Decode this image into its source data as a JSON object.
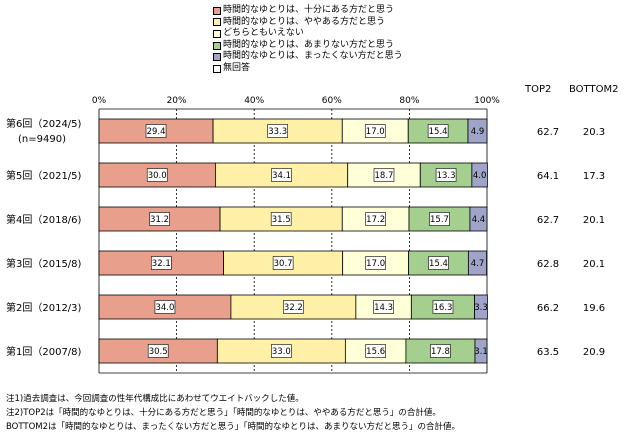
{
  "chart_data": {
    "type": "bar",
    "stacked": true,
    "orientation": "horizontal",
    "categories": [
      [
        "第6回（2024/5)",
        "(n=9490)"
      ],
      [
        "第5回（2021/5)"
      ],
      [
        "第4回（2018/6)"
      ],
      [
        "第3回（2015/8)"
      ],
      [
        "第2回（2012/3)"
      ],
      [
        "第1回（2007/8)"
      ]
    ],
    "series": [
      {
        "name": "時間的なゆとりは、十分にある方だと思う",
        "color": "#E8A08C",
        "values": [
          29.4,
          30.0,
          31.2,
          32.1,
          34.0,
          30.5
        ]
      },
      {
        "name": "時間的なゆとりは、ややある方だと思う",
        "color": "#FFF0A8",
        "values": [
          33.3,
          34.1,
          31.5,
          30.7,
          32.2,
          33.0
        ]
      },
      {
        "name": "どちらともいえない",
        "color": "#FFFFD8",
        "values": [
          17.0,
          18.7,
          17.2,
          17.0,
          14.3,
          15.6
        ]
      },
      {
        "name": "時間的なゆとりは、あまりない方だと思う",
        "color": "#A5CF8E",
        "values": [
          15.4,
          13.3,
          15.7,
          15.4,
          16.3,
          17.8
        ]
      },
      {
        "name": "時間的なゆとりは、まったくない方だと思う",
        "color": "#9FA4C8",
        "values": [
          4.9,
          4.0,
          4.4,
          4.7,
          3.3,
          3.1
        ]
      },
      {
        "name": "無回答",
        "color": "#FFFFFF",
        "values": [
          0,
          0,
          0,
          0,
          0,
          0
        ]
      }
    ],
    "xticks": [
      "0%",
      "20%",
      "40%",
      "60%",
      "80%",
      "100%"
    ],
    "xlim": [
      0,
      100
    ],
    "grid": true,
    "legend_position": "top",
    "summary": {
      "top2_label": "TOP2",
      "bottom2_label": "BOTTOM2",
      "top2": [
        "62.7",
        "64.1",
        "62.7",
        "62.8",
        "66.2",
        "63.5"
      ],
      "bottom2": [
        "20.3",
        "17.3",
        "20.1",
        "20.1",
        "19.6",
        "20.9"
      ]
    }
  },
  "notes": [
    "注1)過去調査は、今回調査の性年代構成比にあわせてウエイトバックした値。",
    "注2)TOP2は「時間的なゆとりは、十分にある方だと思う」「時間的なゆとりは、ややある方だと思う」の合計値。",
    "BOTTOM2は「時間的なゆとりは、まったくない方だと思う」「時間的なゆとりは、あまりない方だと思う」の合計値。"
  ]
}
